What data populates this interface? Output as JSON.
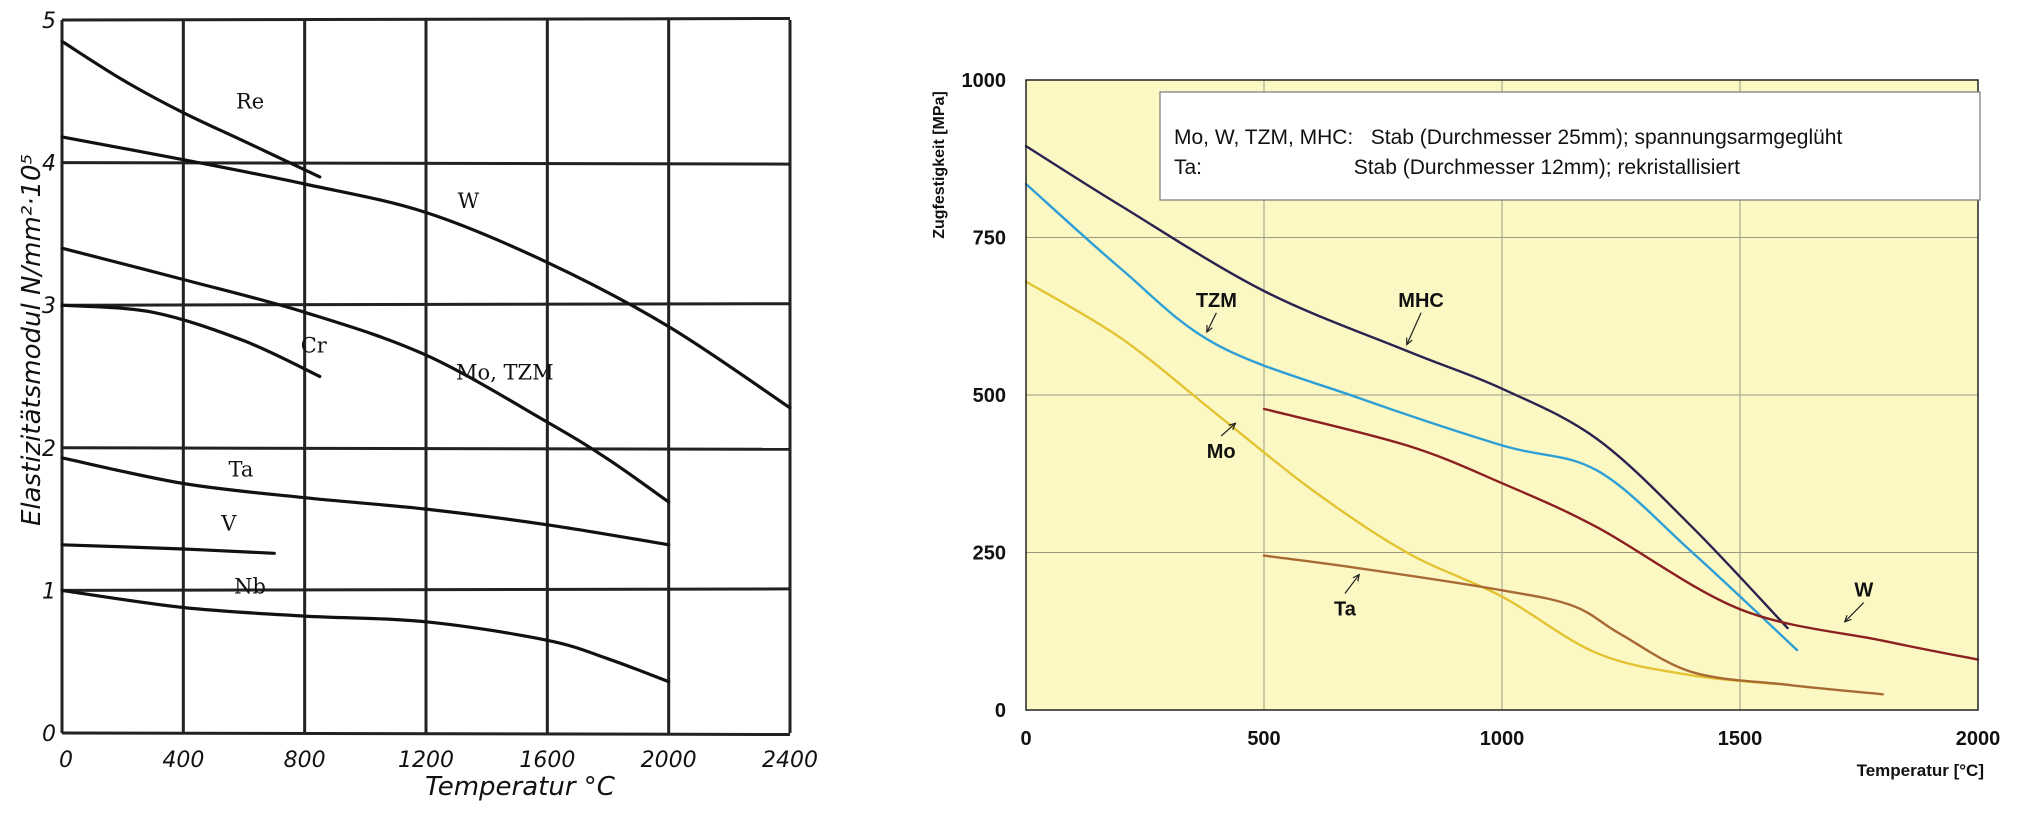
{
  "chart_data": [
    {
      "type": "line",
      "ylabel": "Elastizitätsmodul N/mm²·10⁵",
      "xlabel": "Temperatur °C",
      "xlim": [
        0,
        2400
      ],
      "ylim": [
        0,
        5
      ],
      "x_ticks": [
        "0",
        "400",
        "800",
        "1200",
        "1600",
        "2000",
        "2400"
      ],
      "y_ticks": [
        "0",
        "1",
        "2",
        "3",
        "4",
        "5"
      ],
      "grid": true,
      "series": [
        {
          "name": "Re",
          "label_at": [
            620,
            4.38
          ],
          "points": [
            [
              0,
              4.85
            ],
            [
              200,
              4.58
            ],
            [
              400,
              4.35
            ],
            [
              600,
              4.15
            ],
            [
              850,
              3.9
            ]
          ]
        },
        {
          "name": "W",
          "label_at": [
            1340,
            3.68
          ],
          "points": [
            [
              0,
              4.18
            ],
            [
              400,
              4.02
            ],
            [
              800,
              3.85
            ],
            [
              1200,
              3.65
            ],
            [
              1600,
              3.3
            ],
            [
              2000,
              2.85
            ],
            [
              2400,
              2.28
            ]
          ]
        },
        {
          "name": "Cr",
          "label_at": [
            830,
            2.67
          ],
          "points": [
            [
              0,
              3.0
            ],
            [
              300,
              2.95
            ],
            [
              600,
              2.75
            ],
            [
              850,
              2.5
            ]
          ]
        },
        {
          "name": "Mo, TZM",
          "label_at": [
            1460,
            2.48
          ],
          "points": [
            [
              0,
              3.4
            ],
            [
              400,
              3.18
            ],
            [
              800,
              2.95
            ],
            [
              1200,
              2.65
            ],
            [
              1600,
              2.18
            ],
            [
              1800,
              1.92
            ],
            [
              2000,
              1.62
            ]
          ]
        },
        {
          "name": "Ta",
          "label_at": [
            590,
            1.8
          ],
          "points": [
            [
              0,
              1.93
            ],
            [
              400,
              1.75
            ],
            [
              800,
              1.65
            ],
            [
              1200,
              1.57
            ],
            [
              1600,
              1.46
            ],
            [
              2000,
              1.32
            ]
          ]
        },
        {
          "name": "V",
          "label_at": [
            550,
            1.42
          ],
          "points": [
            [
              0,
              1.32
            ],
            [
              400,
              1.29
            ],
            [
              700,
              1.26
            ]
          ]
        },
        {
          "name": "Nb",
          "label_at": [
            620,
            0.98
          ],
          "points": [
            [
              0,
              1.0
            ],
            [
              400,
              0.88
            ],
            [
              800,
              0.82
            ],
            [
              1200,
              0.78
            ],
            [
              1600,
              0.65
            ],
            [
              1800,
              0.52
            ],
            [
              2000,
              0.36
            ]
          ]
        }
      ]
    },
    {
      "type": "line",
      "ylabel": "Zugfestigkeit  [MPa]",
      "xlabel": "Temperatur  [°C]",
      "xlim": [
        0,
        2000
      ],
      "ylim": [
        0,
        1000
      ],
      "x_ticks": [
        "0",
        "500",
        "1000",
        "1500",
        "2000"
      ],
      "y_ticks": [
        "0",
        "250",
        "500",
        "750",
        "1000"
      ],
      "grid": true,
      "background": "#fcf8c4",
      "annotation_lines": [
        "Mo, W, TZM, MHC:   Stab (Durchmesser 25mm); spannungsarmgeglüht",
        "Ta:                          Stab (Durchmesser 12mm); rekristallisiert"
      ],
      "series": [
        {
          "name": "MHC",
          "color": "#2a2350",
          "label_at": [
            830,
            640
          ],
          "arrow_to": [
            800,
            580
          ],
          "points": [
            [
              0,
              895
            ],
            [
              200,
              800
            ],
            [
              500,
              665
            ],
            [
              800,
              570
            ],
            [
              1000,
              510
            ],
            [
              1200,
              430
            ],
            [
              1400,
              290
            ],
            [
              1600,
              130
            ]
          ]
        },
        {
          "name": "TZM",
          "color": "#2e9fd6",
          "label_at": [
            400,
            640
          ],
          "arrow_to": [
            380,
            600
          ],
          "points": [
            [
              0,
              835
            ],
            [
              200,
              700
            ],
            [
              400,
              580
            ],
            [
              700,
              495
            ],
            [
              1000,
              420
            ],
            [
              1200,
              380
            ],
            [
              1400,
              250
            ],
            [
              1620,
              95
            ]
          ]
        },
        {
          "name": "W",
          "color": "#8b2020",
          "label_at": [
            1760,
            180
          ],
          "arrow_to": [
            1720,
            140
          ],
          "points": [
            [
              500,
              478
            ],
            [
              800,
              420
            ],
            [
              1000,
              360
            ],
            [
              1200,
              290
            ],
            [
              1500,
              160
            ],
            [
              1800,
              110
            ],
            [
              2000,
              80
            ]
          ]
        },
        {
          "name": "Mo",
          "color": "#e3c331",
          "label_at": [
            410,
            400
          ],
          "arrow_to": [
            440,
            455
          ],
          "points": [
            [
              0,
              680
            ],
            [
              200,
              590
            ],
            [
              400,
              470
            ],
            [
              600,
              350
            ],
            [
              800,
              250
            ],
            [
              1000,
              180
            ],
            [
              1200,
              90
            ],
            [
              1400,
              55
            ],
            [
              1600,
              40
            ]
          ]
        },
        {
          "name": "Ta",
          "color": "#a86a34",
          "label_at": [
            670,
            150
          ],
          "arrow_to": [
            700,
            215
          ],
          "points": [
            [
              500,
              245
            ],
            [
              700,
              225
            ],
            [
              1000,
              190
            ],
            [
              1150,
              165
            ],
            [
              1250,
              120
            ],
            [
              1400,
              60
            ],
            [
              1600,
              40
            ],
            [
              1800,
              25
            ]
          ]
        }
      ]
    }
  ]
}
